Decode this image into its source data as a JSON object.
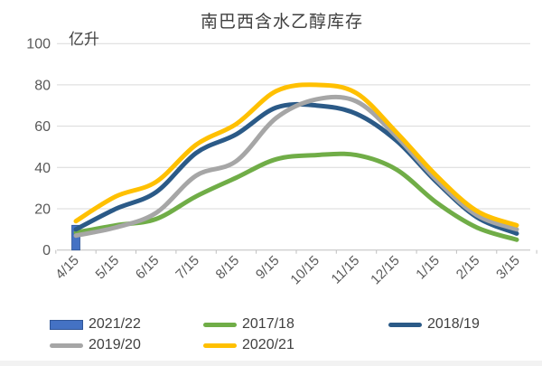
{
  "chart_data": {
    "type": "combo",
    "title": "南巴西含水乙醇库存",
    "y_unit": "亿升",
    "categories": [
      "4/15",
      "5/15",
      "6/15",
      "7/15",
      "8/15",
      "9/15",
      "10/15",
      "11/15",
      "12/15",
      "1/15",
      "2/15",
      "3/15"
    ],
    "yticks": [
      0,
      20,
      40,
      60,
      80,
      100
    ],
    "ylim": [
      0,
      100
    ],
    "grid": true,
    "line_smooth": true,
    "legend_position": "bottom",
    "series": [
      {
        "name": "2021/22",
        "kind": "bar",
        "color": "#4472C4",
        "border": "#2F5597",
        "values": [
          12,
          null,
          null,
          null,
          null,
          null,
          null,
          null,
          null,
          null,
          null,
          null
        ]
      },
      {
        "name": "2017/18",
        "kind": "line",
        "color": "#70AD47",
        "values": [
          8.5,
          12,
          15,
          26,
          35,
          44,
          46,
          46,
          39,
          23,
          11,
          5
        ]
      },
      {
        "name": "2018/19",
        "kind": "line",
        "color": "#2B5A87",
        "values": [
          10,
          20,
          28,
          47,
          56,
          69,
          70,
          66,
          53,
          33,
          16,
          8
        ]
      },
      {
        "name": "2019/20",
        "kind": "line",
        "color": "#A6A6A6",
        "values": [
          7,
          11,
          18,
          36,
          43,
          64,
          73,
          72,
          55,
          34,
          17,
          10
        ]
      },
      {
        "name": "2020/21",
        "kind": "line",
        "color": "#FFC000",
        "values": [
          14,
          26,
          33,
          51,
          61,
          77,
          80,
          76,
          57,
          36,
          19,
          12
        ]
      }
    ],
    "gridline_color": "#D9D9D9",
    "axis_color": "#BFBFBF"
  }
}
